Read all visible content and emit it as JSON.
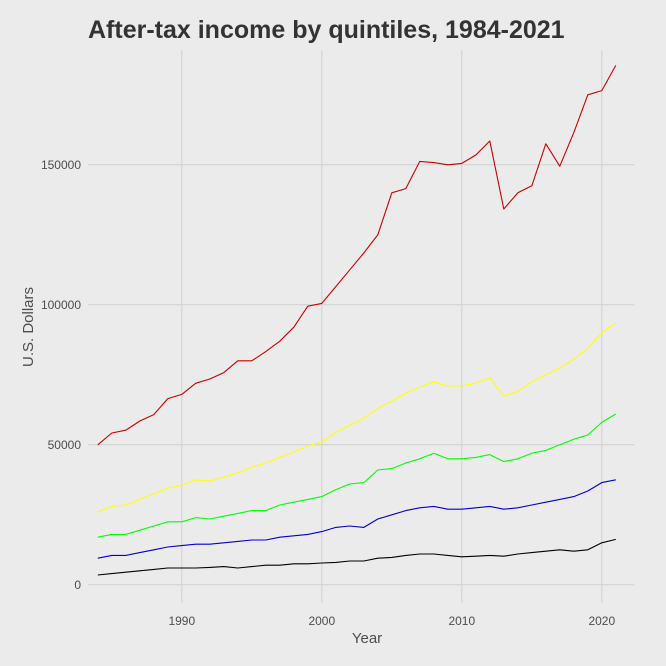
{
  "chart_data": {
    "type": "line",
    "title": "After-tax income by quintiles, 1984-2021",
    "xlabel": "Year",
    "ylabel": "U.S. Dollars",
    "xlim": [
      1983.3,
      2022.3
    ],
    "ylim": [
      -6500,
      191000
    ],
    "x_ticks": [
      1990,
      2000,
      2010,
      2020
    ],
    "y_ticks": [
      0,
      50000,
      100000,
      150000
    ],
    "grid": true,
    "legend": "none",
    "x": [
      1984,
      1985,
      1986,
      1987,
      1988,
      1989,
      1990,
      1991,
      1992,
      1993,
      1994,
      1995,
      1996,
      1997,
      1998,
      1999,
      2000,
      2001,
      2002,
      2003,
      2004,
      2005,
      2006,
      2007,
      2008,
      2009,
      2010,
      2011,
      2012,
      2013,
      2014,
      2015,
      2016,
      2017,
      2018,
      2019,
      2020,
      2021
    ],
    "series": [
      {
        "color": "#cc0000",
        "values": [
          50000,
          54200,
          55200,
          58500,
          60800,
          66500,
          68000,
          72000,
          73500,
          75800,
          80000,
          80000,
          83300,
          87000,
          92000,
          99500,
          100500,
          106500,
          112500,
          118500,
          125000,
          140000,
          141500,
          151200,
          150800,
          150000,
          150500,
          153500,
          158500,
          134200,
          140000,
          142500,
          157500,
          149500,
          161500,
          175000,
          176500,
          185500
        ]
      },
      {
        "color": "#ffff00",
        "values": [
          26000,
          28000,
          28500,
          30500,
          32500,
          34500,
          35500,
          37500,
          37000,
          38500,
          40000,
          42000,
          43500,
          45500,
          47500,
          49500,
          51000,
          54500,
          57000,
          59500,
          63000,
          65500,
          68500,
          70500,
          72500,
          71000,
          71000,
          72000,
          74000,
          67500,
          69000,
          72500,
          75000,
          77500,
          80500,
          84500,
          90000,
          93500
        ]
      },
      {
        "color": "#00ff00",
        "values": [
          17000,
          18000,
          18000,
          19500,
          21000,
          22500,
          22500,
          24000,
          23500,
          24500,
          25500,
          26500,
          26500,
          28500,
          29500,
          30500,
          31500,
          34000,
          36000,
          36500,
          41000,
          41500,
          43500,
          45000,
          47000,
          45000,
          45000,
          45500,
          46500,
          44000,
          45000,
          47000,
          48000,
          50000,
          52000,
          53500,
          58000,
          61000
        ]
      },
      {
        "color": "#0000cc",
        "values": [
          9500,
          10500,
          10500,
          11500,
          12500,
          13500,
          14000,
          14500,
          14500,
          15000,
          15500,
          16000,
          16000,
          17000,
          17500,
          18000,
          19000,
          20500,
          21000,
          20500,
          23500,
          25000,
          26500,
          27500,
          28000,
          27000,
          27000,
          27500,
          28000,
          27000,
          27500,
          28500,
          29500,
          30500,
          31500,
          33500,
          36500,
          37500
        ]
      },
      {
        "color": "#000000",
        "values": [
          3500,
          4000,
          4500,
          5000,
          5500,
          6000,
          6000,
          6000,
          6200,
          6500,
          6000,
          6500,
          7000,
          7000,
          7500,
          7500,
          7800,
          8000,
          8500,
          8500,
          9500,
          9800,
          10500,
          11000,
          11000,
          10500,
          10000,
          10200,
          10500,
          10200,
          11000,
          11500,
          12000,
          12500,
          12000,
          12500,
          15000,
          16200
        ]
      }
    ]
  }
}
